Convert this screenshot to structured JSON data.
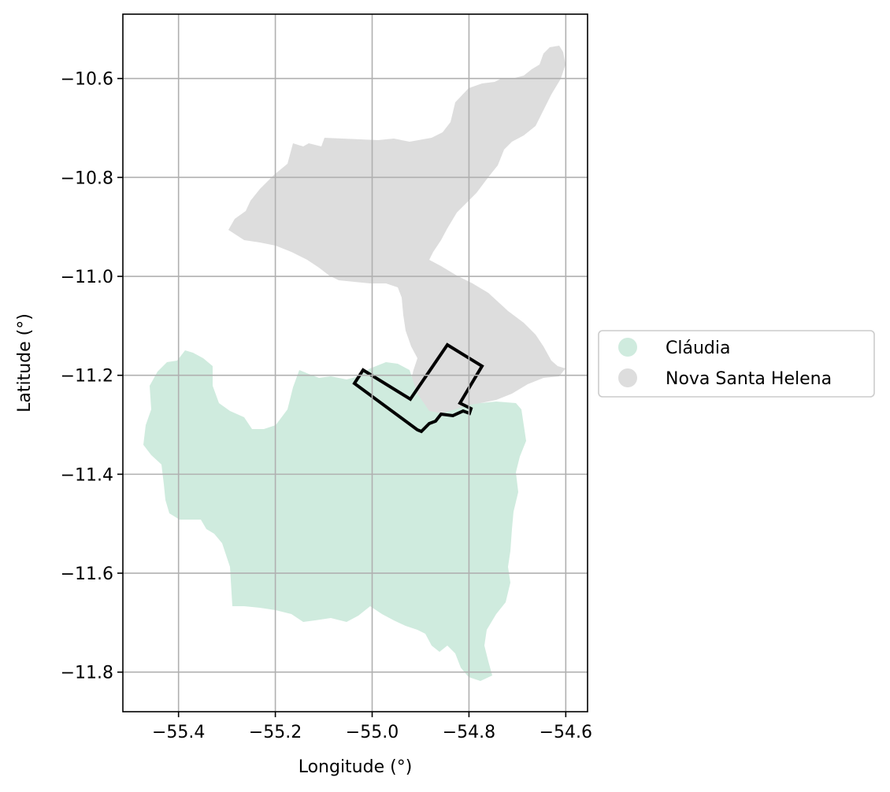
{
  "map": {
    "xlabel": "Longitude (°)",
    "ylabel": "Latitude (°)",
    "xlim": [
      -55.515,
      -54.555
    ],
    "ylim": [
      -11.88,
      -10.47
    ],
    "grid": true,
    "xticks": [
      -55.4,
      -55.2,
      -55.0,
      -54.8,
      -54.6
    ],
    "xtick_labels": [
      "−55.4",
      "−55.2",
      "−55.0",
      "−54.8",
      "−54.6"
    ],
    "yticks": [
      -10.6,
      -10.8,
      -11.0,
      -11.2,
      -11.4,
      -11.6,
      -11.8
    ],
    "ytick_labels": [
      "−10.6",
      "−10.8",
      "−11.0",
      "−11.2",
      "−11.4",
      "−11.6",
      "−11.8"
    ],
    "legend_position": "right-center",
    "regions": [
      {
        "name": "Cláudia",
        "color": "#cfebde"
      },
      {
        "name": "Nova Santa Helena",
        "color": "#dddddd"
      }
    ],
    "highlight_outline": {
      "color": "#000000"
    }
  }
}
